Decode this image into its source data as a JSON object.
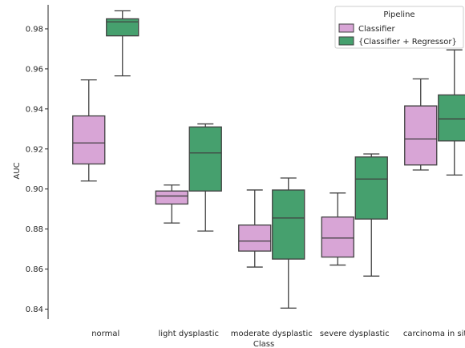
{
  "chart_data": {
    "type": "box",
    "xlabel": "Class",
    "ylabel": "AUC",
    "ylim": [
      0.835,
      0.992
    ],
    "yticks": [
      0.84,
      0.86,
      0.88,
      0.9,
      0.92,
      0.94,
      0.96,
      0.98
    ],
    "ytick_labels": [
      "0.84",
      "0.86",
      "0.88",
      "0.90",
      "0.92",
      "0.94",
      "0.96",
      "0.98"
    ],
    "categories": [
      "normal",
      "light dysplastic",
      "moderate dysplastic",
      "severe dysplastic",
      "carcinoma in situ"
    ],
    "grid": false,
    "legend": {
      "title": "Pipeline",
      "placement": "top-right",
      "entries": [
        "Classifier",
        "{Classifier + Regressor}"
      ]
    },
    "colors": {
      "Classifier": "#d8a5d6",
      "{Classifier + Regressor}": "#46a06e",
      "edge": "#404040"
    },
    "series": [
      {
        "name": "Classifier",
        "boxes": [
          {
            "whislo": 0.904,
            "q1": 0.9125,
            "med": 0.923,
            "q3": 0.9365,
            "whishi": 0.9545
          },
          {
            "whislo": 0.883,
            "q1": 0.8925,
            "med": 0.8965,
            "q3": 0.899,
            "whishi": 0.902
          },
          {
            "whislo": 0.861,
            "q1": 0.869,
            "med": 0.874,
            "q3": 0.882,
            "whishi": 0.8995
          },
          {
            "whislo": 0.862,
            "q1": 0.866,
            "med": 0.8755,
            "q3": 0.886,
            "whishi": 0.898
          },
          {
            "whislo": 0.9095,
            "q1": 0.912,
            "med": 0.925,
            "q3": 0.9415,
            "whishi": 0.955
          }
        ]
      },
      {
        "name": "{Classifier + Regressor}",
        "boxes": [
          {
            "whislo": 0.9565,
            "q1": 0.9765,
            "med": 0.9835,
            "q3": 0.985,
            "whishi": 0.989
          },
          {
            "whislo": 0.879,
            "q1": 0.899,
            "med": 0.918,
            "q3": 0.931,
            "whishi": 0.9325
          },
          {
            "whislo": 0.8405,
            "q1": 0.865,
            "med": 0.8855,
            "q3": 0.8995,
            "whishi": 0.9055
          },
          {
            "whislo": 0.8565,
            "q1": 0.885,
            "med": 0.905,
            "q3": 0.916,
            "whishi": 0.9175
          },
          {
            "whislo": 0.907,
            "q1": 0.924,
            "med": 0.935,
            "q3": 0.947,
            "whishi": 0.9695
          }
        ]
      }
    ]
  }
}
